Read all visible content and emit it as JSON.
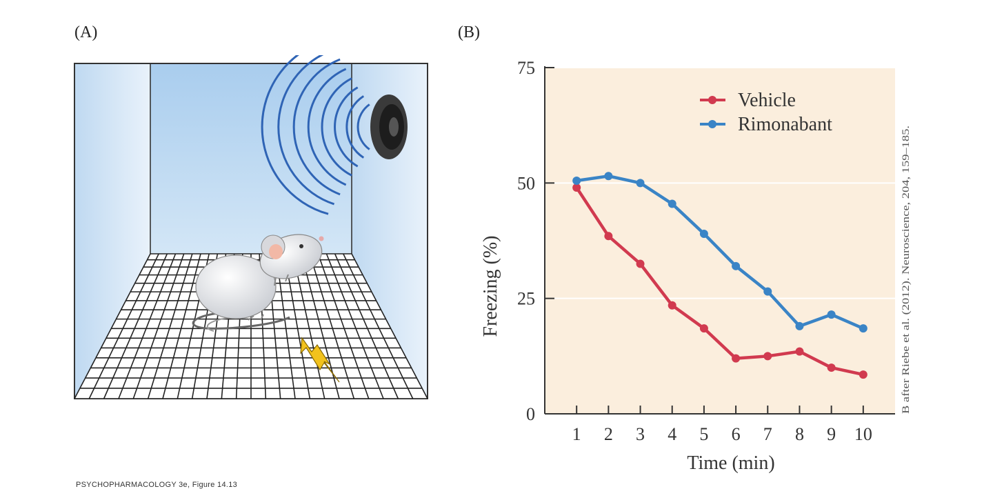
{
  "panels": {
    "a": "(A)",
    "b": "(B)"
  },
  "credit": "B after Riebe et al. (2012). Neuroscience, 204, 159–185.",
  "footer": "PSYCHOPHARMACOLOGY 3e, Figure 14.13",
  "colors": {
    "vehicle": "#d13a4f",
    "rimonabant": "#3a84c6",
    "plot_bg": "#fbeedd",
    "wall": "#cfe3f4"
  },
  "chart_data": {
    "type": "line",
    "x": [
      1,
      2,
      3,
      4,
      5,
      6,
      7,
      8,
      9,
      10
    ],
    "xlabel": "Time (min)",
    "ylabel": "Freezing (%)",
    "xlim": [
      0,
      11
    ],
    "ylim": [
      0,
      75
    ],
    "yticks": [
      0,
      25,
      50,
      75
    ],
    "grid": true,
    "legend_position": "top-right",
    "series": [
      {
        "name": "Vehicle",
        "color": "#d13a4f",
        "values": [
          49,
          38.5,
          32.5,
          23.5,
          18.5,
          12,
          12.5,
          13.5,
          10,
          8.5
        ]
      },
      {
        "name": "Rimonabant",
        "color": "#3a84c6",
        "values": [
          50.5,
          51.5,
          50,
          45.5,
          39,
          32,
          26.5,
          19,
          21.5,
          18.5
        ]
      }
    ]
  }
}
